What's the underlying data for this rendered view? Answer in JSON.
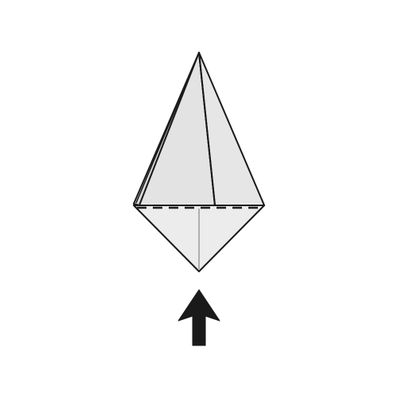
{
  "diagram": {
    "kind": "origami-fold-step",
    "paper_color": "#e3e3e3",
    "paper_light_color": "#ececec",
    "outline_color": "#1a1a1a",
    "crease_color": "#9a9a9a",
    "arrow_color": "#1a1a1a",
    "background": "#ffffff",
    "fold_line_style": "dashed valley fold",
    "arrow_icon": "arrow-up-icon",
    "arrow_meaning": "fold up"
  }
}
